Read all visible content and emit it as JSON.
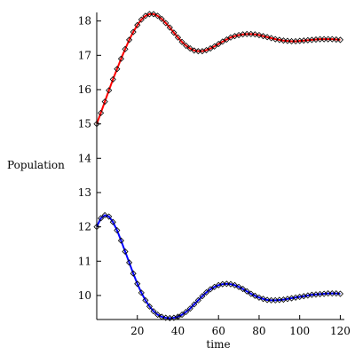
{
  "chart_data": {
    "type": "line",
    "xlabel": "time",
    "ylabel": "Population",
    "xlim": [
      0,
      122
    ],
    "ylim": [
      9.3,
      18.25
    ],
    "x_ticks": [
      20,
      40,
      60,
      80,
      100,
      120
    ],
    "y_ticks": [
      10,
      11,
      12,
      13,
      14,
      15,
      16,
      17,
      18
    ],
    "grid": false,
    "legend": "none",
    "series": [
      {
        "color": "#ff0000",
        "marker": "diamond",
        "marker_color": "#000000",
        "x": [
          0,
          2,
          4,
          6,
          8,
          10,
          12,
          14,
          16,
          18,
          20,
          22,
          24,
          26,
          28,
          30,
          32,
          34,
          36,
          38,
          40,
          42,
          44,
          46,
          48,
          50,
          52,
          54,
          56,
          58,
          60,
          62,
          64,
          66,
          68,
          70,
          72,
          74,
          76,
          78,
          80,
          82,
          84,
          86,
          88,
          90,
          92,
          94,
          96,
          98,
          100,
          102,
          104,
          106,
          108,
          110,
          112,
          114,
          116,
          118,
          120
        ],
        "values": [
          15.0,
          15.32,
          15.65,
          15.98,
          16.3,
          16.6,
          16.9,
          17.18,
          17.45,
          17.68,
          17.88,
          18.04,
          18.15,
          18.2,
          18.2,
          18.15,
          18.06,
          17.94,
          17.81,
          17.66,
          17.52,
          17.39,
          17.28,
          17.2,
          17.14,
          17.12,
          17.12,
          17.15,
          17.2,
          17.26,
          17.33,
          17.4,
          17.46,
          17.52,
          17.56,
          17.59,
          17.61,
          17.62,
          17.62,
          17.61,
          17.59,
          17.56,
          17.53,
          17.5,
          17.47,
          17.45,
          17.43,
          17.42,
          17.41,
          17.41,
          17.42,
          17.43,
          17.44,
          17.45,
          17.46,
          17.47,
          17.47,
          17.47,
          17.47,
          17.46,
          17.45
        ]
      },
      {
        "color": "#0000ff",
        "marker": "diamond",
        "marker_color": "#000000",
        "x": [
          0,
          2,
          4,
          6,
          8,
          10,
          12,
          14,
          16,
          18,
          20,
          22,
          24,
          26,
          28,
          30,
          32,
          34,
          36,
          38,
          40,
          42,
          44,
          46,
          48,
          50,
          52,
          54,
          56,
          58,
          60,
          62,
          64,
          66,
          68,
          70,
          72,
          74,
          76,
          78,
          80,
          82,
          84,
          86,
          88,
          90,
          92,
          94,
          96,
          98,
          100,
          102,
          104,
          106,
          108,
          110,
          112,
          114,
          116,
          118,
          120
        ],
        "values": [
          12.0,
          12.25,
          12.34,
          12.3,
          12.14,
          11.9,
          11.6,
          11.28,
          10.96,
          10.64,
          10.34,
          10.08,
          9.86,
          9.68,
          9.54,
          9.44,
          9.38,
          9.35,
          9.34,
          9.35,
          9.38,
          9.44,
          9.52,
          9.62,
          9.74,
          9.86,
          9.98,
          10.09,
          10.18,
          10.25,
          10.3,
          10.33,
          10.34,
          10.33,
          10.3,
          10.25,
          10.19,
          10.12,
          10.05,
          9.99,
          9.94,
          9.9,
          9.87,
          9.86,
          9.86,
          9.87,
          9.88,
          9.9,
          9.92,
          9.94,
          9.96,
          9.98,
          10.0,
          10.02,
          10.03,
          10.04,
          10.05,
          10.06,
          10.06,
          10.06,
          10.05
        ]
      }
    ]
  }
}
